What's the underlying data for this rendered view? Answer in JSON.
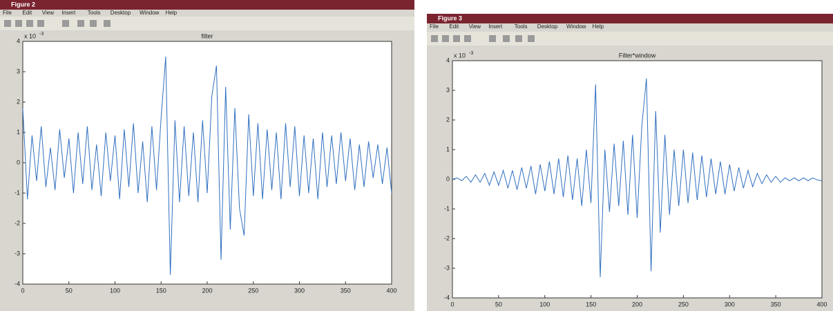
{
  "windows": [
    {
      "title": "Figure 2",
      "menu": [
        "File",
        "Edit",
        "View",
        "Insert",
        "Tools",
        "Desktop",
        "Window",
        "Help"
      ]
    },
    {
      "title": "Figure 3",
      "menu": [
        "File",
        "Edit",
        "View",
        "Insert",
        "Tools",
        "Desktop",
        "Window",
        "Help"
      ]
    }
  ],
  "chart_data": [
    {
      "type": "line",
      "title": "filter",
      "y_multiplier": {
        "base": "x 10",
        "exponent": "-3"
      },
      "x": [
        0,
        5,
        10,
        15,
        20,
        25,
        30,
        35,
        40,
        45,
        50,
        55,
        60,
        65,
        70,
        75,
        80,
        85,
        90,
        95,
        100,
        105,
        110,
        115,
        120,
        125,
        130,
        135,
        140,
        145,
        150,
        155,
        160,
        165,
        170,
        175,
        180,
        185,
        190,
        195,
        200,
        205,
        210,
        215,
        220,
        225,
        230,
        235,
        240,
        245,
        250,
        255,
        260,
        265,
        270,
        275,
        280,
        285,
        290,
        295,
        300,
        305,
        310,
        315,
        320,
        325,
        330,
        335,
        340,
        345,
        350,
        355,
        360,
        365,
        370,
        375,
        380,
        385,
        390,
        395,
        400
      ],
      "series": [
        {
          "color": "#2f6fc0",
          "values": [
            1.8,
            -1.2,
            0.9,
            -0.6,
            1.2,
            -0.8,
            0.5,
            -0.9,
            1.1,
            -0.5,
            0.8,
            -1.0,
            1.0,
            -0.7,
            1.2,
            -0.9,
            0.6,
            -1.1,
            1.0,
            -0.6,
            0.9,
            -1.2,
            1.1,
            -0.8,
            1.3,
            -1.0,
            0.7,
            -1.3,
            1.2,
            -0.9,
            1.5,
            3.5,
            -3.7,
            1.4,
            -1.3,
            1.2,
            -1.1,
            1.0,
            -1.3,
            1.4,
            -1.0,
            2.2,
            3.2,
            -3.2,
            2.5,
            -2.2,
            1.8,
            -1.5,
            -2.4,
            1.6,
            -1.1,
            1.3,
            -1.2,
            1.1,
            -0.9,
            1.0,
            -1.2,
            1.3,
            -0.8,
            1.2,
            -1.1,
            0.9,
            -1.0,
            0.8,
            -1.2,
            1.0,
            -0.8,
            0.9,
            -0.7,
            1.0,
            -0.6,
            0.8,
            -0.9,
            0.6,
            -0.8,
            0.7,
            -0.5,
            0.6,
            -0.7,
            0.5,
            -1.0
          ]
        }
      ],
      "xlim": [
        0,
        400
      ],
      "xticks": [
        0,
        50,
        100,
        150,
        200,
        250,
        300,
        350,
        400
      ],
      "ylim": [
        -4,
        4
      ],
      "yticks": [
        -4,
        -3,
        -2,
        -1,
        0,
        1,
        2,
        3,
        4
      ]
    },
    {
      "type": "line",
      "title": "Filter*window",
      "y_multiplier": {
        "base": "x 10",
        "exponent": "-3"
      },
      "x": [
        0,
        5,
        10,
        15,
        20,
        25,
        30,
        35,
        40,
        45,
        50,
        55,
        60,
        65,
        70,
        75,
        80,
        85,
        90,
        95,
        100,
        105,
        110,
        115,
        120,
        125,
        130,
        135,
        140,
        145,
        150,
        155,
        160,
        165,
        170,
        175,
        180,
        185,
        190,
        195,
        200,
        205,
        210,
        215,
        220,
        225,
        230,
        235,
        240,
        245,
        250,
        255,
        260,
        265,
        270,
        275,
        280,
        285,
        290,
        295,
        300,
        305,
        310,
        315,
        320,
        325,
        330,
        335,
        340,
        345,
        350,
        355,
        360,
        365,
        370,
        375,
        380,
        385,
        390,
        395,
        400
      ],
      "series": [
        {
          "color": "#2f6fc0",
          "values": [
            0,
            0.05,
            -0.05,
            0.1,
            -0.1,
            0.15,
            -0.1,
            0.2,
            -0.2,
            0.25,
            -0.2,
            0.3,
            -0.3,
            0.3,
            -0.35,
            0.4,
            -0.3,
            0.45,
            -0.5,
            0.5,
            -0.4,
            0.6,
            -0.5,
            0.7,
            -0.6,
            0.8,
            -0.7,
            0.7,
            -0.9,
            1.0,
            -0.8,
            3.2,
            -3.3,
            1.0,
            -1.1,
            1.2,
            -0.9,
            1.3,
            -1.2,
            1.5,
            -1.3,
            1.8,
            3.4,
            -3.1,
            2.3,
            -1.8,
            1.5,
            -1.2,
            1.0,
            -0.9,
            1.0,
            -0.8,
            0.9,
            -0.7,
            0.8,
            -0.6,
            0.7,
            -0.5,
            0.6,
            -0.5,
            0.5,
            -0.4,
            0.4,
            -0.3,
            0.3,
            -0.25,
            0.2,
            -0.15,
            0.15,
            -0.1,
            0.1,
            -0.1,
            0.05,
            -0.05,
            0.05,
            -0.05,
            0.05,
            -0.05,
            0.05,
            -0.02,
            -0.05
          ]
        }
      ],
      "xlim": [
        0,
        400
      ],
      "xticks": [
        0,
        50,
        100,
        150,
        200,
        250,
        300,
        350,
        400
      ],
      "ylim": [
        -4,
        4
      ],
      "yticks": [
        -4,
        -3,
        -2,
        -1,
        0,
        1,
        2,
        3,
        4
      ]
    }
  ]
}
